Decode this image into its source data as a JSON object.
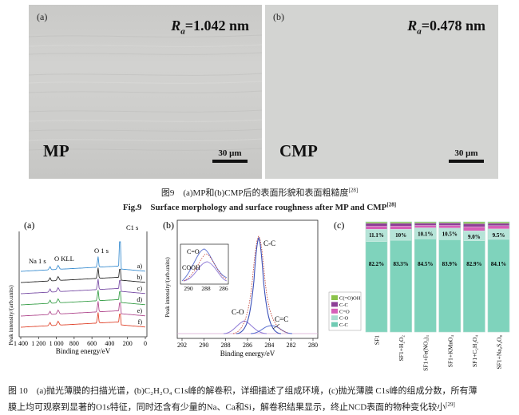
{
  "fig9": {
    "panel_a": {
      "tag": "(a)",
      "ra_symbol": "R",
      "ra_sub": "a",
      "ra_value": "=1.042 nm",
      "method": "MP",
      "scale": "30 μm"
    },
    "panel_b": {
      "tag": "(b)",
      "ra_symbol": "R",
      "ra_sub": "a",
      "ra_value": "=0.478 nm",
      "method": "CMP",
      "scale": "30 μm"
    },
    "caption_cn": "图9　(a)MP和(b)CMP后的表面形貌和表面粗糙度",
    "caption_cn_ref": "[28]",
    "caption_en": "Fig.9　Surface morphology and surface roughness after MP and CMP",
    "caption_en_ref": "[28]"
  },
  "fig10": {
    "panel_a": {
      "tag": "(a)",
      "ylabel": "Peak intensity/(arb.units)",
      "xlabel": "Binding energy/eV",
      "xticks": [
        "1 400",
        "1 200",
        "1 000",
        "800",
        "600",
        "400",
        "200",
        "0"
      ],
      "peak_labels": [
        "Na 1 s",
        "O KLL",
        "O 1 s",
        "C1 s"
      ],
      "trace_labels": [
        "a)",
        "b)",
        "c)",
        "d)",
        "e)",
        "f)"
      ],
      "trace_colors": [
        "#3d8fd1",
        "#2a2a2a",
        "#7a4fa6",
        "#3ba04b",
        "#b14b8f",
        "#e0462e"
      ]
    },
    "panel_b": {
      "tag": "(b)",
      "ylabel": "Peak intensity/(arb.units)",
      "xlabel": "Binding energy/eV",
      "xticks": [
        "292",
        "290",
        "288",
        "286",
        "284",
        "282",
        "280"
      ],
      "inset_xticks": [
        "290",
        "288",
        "286"
      ],
      "labels": {
        "cc": "C-C",
        "co": "C-O",
        "cec": "C=C",
        "inset_co": "C=O",
        "inset_cooh": "COOH"
      }
    },
    "panel_c": {
      "tag": "(c)",
      "legend": [
        "C(=O)OH",
        "C-C",
        "C=O",
        "C-O",
        "C-C"
      ],
      "legend_colors": [
        "#8bc34a",
        "#8e3f97",
        "#d65fb8",
        "#a9ddd0",
        "#6fcbb3"
      ],
      "chart_data": {
        "type": "bar",
        "stacked": true,
        "categories": [
          "SF1",
          "SF1+H₂O₂",
          "SF1+Fe(NO₃)₃",
          "SF1+KMnO₄",
          "SF1+C₂H₂O₄",
          "SF1+Na₂S₂O₈"
        ],
        "series": [
          {
            "name": "C-C",
            "values": [
              82.2,
              83.3,
              84.5,
              83.9,
              82.9,
              84.1
            ]
          },
          {
            "name": "C-O",
            "values": [
              11.1,
              10,
              10.1,
              10.5,
              9.0,
              9.5
            ]
          },
          {
            "name": "C=O",
            "values": [
              2.8,
              2.9,
              2.2,
              2.4,
              3.7,
              2.9
            ]
          },
          {
            "name": "C-C",
            "values": [
              2.6,
              2.5,
              2.1,
              2.2,
              2.8,
              2.3
            ]
          },
          {
            "name": "C(=O)OH",
            "values": [
              1.3,
              1.3,
              1.1,
              1.0,
              1.6,
              1.2
            ]
          }
        ],
        "data_labels_top": [
          "11.1%",
          "10%",
          "10.1%",
          "10.5%",
          "9.0%",
          "9.5%"
        ],
        "data_labels_mid": [
          "82.2%",
          "83.3%",
          "84.5%",
          "83.9%",
          "82.9%",
          "84.1%"
        ],
        "ylim": [
          0,
          100
        ]
      }
    },
    "caption_line1": "图 10　(a)抛光薄膜的扫描光谱，(b)C₂H₂O₄ C1s峰的解卷积，详细描述了组成环境，(c)抛光薄膜 C1s峰的组成分数，所有薄",
    "caption_line2": "膜上均可观察到显著的O1s特征，同时还含有少量的Na、Ca和Si，解卷积结果显示，终止NCD表面的物种变化较小",
    "caption_ref": "[29]"
  }
}
